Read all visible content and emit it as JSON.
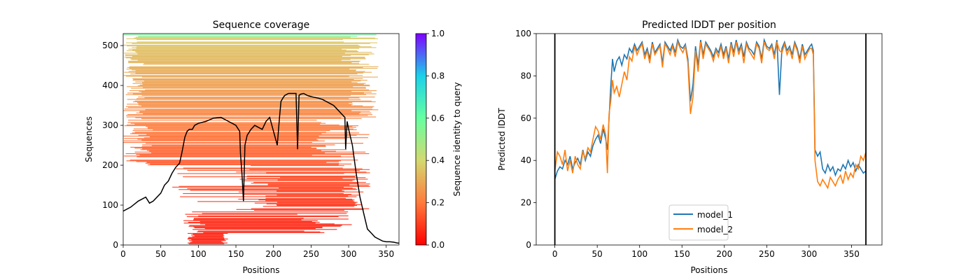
{
  "chart_data": [
    {
      "type": "heatmap",
      "title": "Sequence coverage",
      "xlabel": "Positions",
      "ylabel": "Sequences",
      "xlim": [
        0,
        367
      ],
      "ylim": [
        0,
        530
      ],
      "xticks": [
        "0",
        "50",
        "100",
        "150",
        "200",
        "250",
        "300",
        "350"
      ],
      "yticks": [
        "0",
        "100",
        "200",
        "300",
        "400",
        "500"
      ],
      "colorbar": {
        "label": "Sequence identity to query",
        "ticks": [
          "0.0",
          "0.2",
          "0.4",
          "0.6",
          "0.8",
          "1.0"
        ],
        "range": [
          0,
          1
        ],
        "colormap": "rainbow_r"
      },
      "coverage_line": {
        "color": "#000000",
        "x": [
          0,
          10,
          20,
          30,
          35,
          40,
          50,
          55,
          60,
          65,
          70,
          75,
          78,
          80,
          82,
          85,
          88,
          92,
          95,
          100,
          110,
          120,
          130,
          140,
          145,
          150,
          155,
          156,
          158,
          160,
          162,
          165,
          170,
          175,
          180,
          185,
          190,
          195,
          200,
          205,
          208,
          210,
          213,
          215,
          220,
          225,
          230,
          232,
          234,
          236,
          240,
          245,
          250,
          255,
          260,
          265,
          270,
          275,
          280,
          285,
          290,
          295,
          296,
          298,
          300,
          305,
          310,
          315,
          320,
          325,
          330,
          335,
          340,
          345,
          350,
          355,
          360,
          365,
          367
        ],
        "y": [
          85,
          95,
          110,
          120,
          105,
          110,
          130,
          150,
          160,
          180,
          195,
          205,
          230,
          250,
          270,
          285,
          290,
          290,
          300,
          305,
          310,
          318,
          320,
          310,
          305,
          300,
          285,
          230,
          180,
          110,
          250,
          275,
          290,
          300,
          295,
          290,
          310,
          320,
          285,
          250,
          320,
          360,
          370,
          375,
          380,
          380,
          380,
          240,
          375,
          378,
          380,
          375,
          372,
          370,
          368,
          365,
          360,
          355,
          350,
          340,
          330,
          320,
          240,
          310,
          290,
          250,
          180,
          120,
          80,
          40,
          30,
          20,
          15,
          10,
          8,
          8,
          7,
          5,
          5
        ]
      }
    },
    {
      "type": "line",
      "title": "Predicted lDDT per position",
      "xlabel": "Positions",
      "ylabel": "Predicted lDDT",
      "xlim": [
        -22,
        386
      ],
      "ylim": [
        0,
        100
      ],
      "xticks": [
        "0",
        "50",
        "100",
        "150",
        "200",
        "250",
        "300",
        "350"
      ],
      "yticks": [
        "0",
        "20",
        "40",
        "60",
        "80",
        "100"
      ],
      "vlines": [
        0,
        367
      ],
      "legend": "lower-center",
      "series": [
        {
          "name": "model_1",
          "color": "#1f77b4",
          "x": [
            0,
            3,
            6,
            9,
            12,
            15,
            18,
            21,
            24,
            27,
            30,
            33,
            36,
            39,
            42,
            45,
            48,
            51,
            54,
            57,
            60,
            62,
            64,
            66,
            68,
            70,
            73,
            76,
            79,
            82,
            85,
            88,
            91,
            94,
            97,
            100,
            103,
            106,
            109,
            112,
            115,
            118,
            121,
            124,
            127,
            130,
            133,
            136,
            139,
            142,
            145,
            148,
            151,
            154,
            157,
            160,
            163,
            166,
            169,
            172,
            175,
            178,
            181,
            184,
            187,
            190,
            193,
            196,
            199,
            202,
            205,
            208,
            211,
            214,
            217,
            220,
            223,
            226,
            229,
            232,
            235,
            238,
            241,
            244,
            247,
            250,
            253,
            256,
            259,
            262,
            265,
            268,
            271,
            274,
            277,
            280,
            283,
            286,
            289,
            292,
            295,
            298,
            301,
            303,
            305,
            307,
            310,
            313,
            316,
            319,
            322,
            325,
            328,
            331,
            334,
            337,
            340,
            343,
            346,
            349,
            352,
            355,
            358,
            361,
            364,
            367
          ],
          "y": [
            31,
            35,
            37,
            36,
            40,
            38,
            42,
            36,
            39,
            41,
            38,
            45,
            40,
            44,
            42,
            47,
            50,
            52,
            48,
            55,
            50,
            45,
            60,
            75,
            88,
            82,
            87,
            89,
            85,
            90,
            88,
            93,
            91,
            95,
            92,
            94,
            96,
            90,
            93,
            88,
            96,
            91,
            93,
            95,
            86,
            96,
            94,
            92,
            95,
            91,
            97,
            94,
            93,
            95,
            88,
            68,
            76,
            94,
            85,
            97,
            90,
            96,
            94,
            92,
            89,
            93,
            91,
            95,
            90,
            94,
            88,
            96,
            91,
            97,
            92,
            95,
            89,
            96,
            93,
            92,
            90,
            96,
            94,
            88,
            97,
            94,
            93,
            95,
            90,
            97,
            71,
            93,
            96,
            92,
            94,
            90,
            96,
            93,
            88,
            95,
            90,
            92,
            94,
            95,
            92,
            45,
            42,
            44,
            36,
            34,
            38,
            35,
            37,
            33,
            36,
            35,
            38,
            36,
            40,
            37,
            39,
            35,
            38,
            36,
            34,
            35
          ]
        },
        {
          "name": "model_2",
          "color": "#ff7f0e",
          "x": [
            0,
            3,
            6,
            9,
            12,
            15,
            18,
            21,
            24,
            27,
            30,
            33,
            36,
            39,
            42,
            45,
            48,
            51,
            54,
            57,
            60,
            62,
            64,
            66,
            68,
            70,
            73,
            76,
            79,
            82,
            85,
            88,
            91,
            94,
            97,
            100,
            103,
            106,
            109,
            112,
            115,
            118,
            121,
            124,
            127,
            130,
            133,
            136,
            139,
            142,
            145,
            148,
            151,
            154,
            157,
            160,
            163,
            166,
            169,
            172,
            175,
            178,
            181,
            184,
            187,
            190,
            193,
            196,
            199,
            202,
            205,
            208,
            211,
            214,
            217,
            220,
            223,
            226,
            229,
            232,
            235,
            238,
            241,
            244,
            247,
            250,
            253,
            256,
            259,
            262,
            265,
            268,
            271,
            274,
            277,
            280,
            283,
            286,
            289,
            292,
            295,
            298,
            301,
            303,
            305,
            307,
            310,
            313,
            316,
            319,
            322,
            325,
            328,
            331,
            334,
            337,
            340,
            343,
            346,
            349,
            352,
            355,
            358,
            361,
            364,
            367
          ],
          "y": [
            35,
            44,
            42,
            38,
            45,
            35,
            40,
            34,
            42,
            38,
            36,
            44,
            41,
            46,
            44,
            50,
            56,
            54,
            50,
            57,
            52,
            34,
            62,
            68,
            78,
            72,
            75,
            70,
            76,
            82,
            78,
            89,
            87,
            94,
            90,
            93,
            95,
            88,
            92,
            86,
            95,
            90,
            92,
            94,
            84,
            95,
            93,
            90,
            94,
            89,
            96,
            93,
            91,
            94,
            86,
            62,
            70,
            92,
            82,
            96,
            88,
            95,
            93,
            91,
            87,
            92,
            89,
            94,
            88,
            93,
            86,
            95,
            89,
            96,
            90,
            94,
            86,
            95,
            92,
            90,
            88,
            95,
            93,
            86,
            96,
            93,
            92,
            94,
            88,
            96,
            92,
            91,
            95,
            90,
            93,
            88,
            95,
            92,
            86,
            94,
            88,
            91,
            93,
            93,
            90,
            40,
            30,
            28,
            31,
            29,
            27,
            32,
            30,
            28,
            31,
            33,
            29,
            35,
            31,
            34,
            32,
            38,
            36,
            42,
            40,
            44
          ]
        }
      ]
    }
  ]
}
